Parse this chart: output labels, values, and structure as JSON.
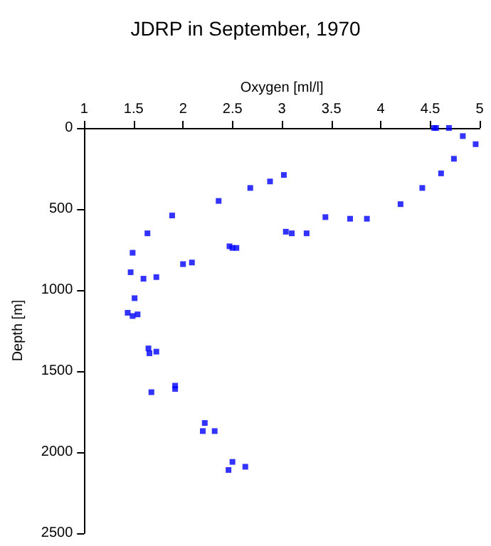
{
  "chart_data": {
    "type": "scatter",
    "title": "JDRP in September, 1970",
    "xlabel": "Oxygen [ml/l]",
    "ylabel": "Depth [m]",
    "x": [
      4.54,
      4.56,
      4.69,
      4.83,
      4.96,
      4.74,
      4.61,
      4.42,
      4.2,
      3.86,
      3.69,
      3.44,
      3.25,
      3.1,
      3.04,
      3.02,
      2.88,
      2.68,
      2.36,
      1.89,
      1.64,
      1.49,
      2.47,
      2.5,
      2.54,
      2.0,
      2.09,
      1.47,
      1.6,
      1.73,
      1.51,
      1.44,
      1.49,
      1.54,
      1.65,
      1.66,
      1.73,
      1.68,
      1.92,
      1.92,
      2.22,
      2.2,
      2.32,
      2.5,
      2.63,
      2.46
    ],
    "values": [
      0,
      0,
      0,
      50,
      100,
      190,
      280,
      370,
      470,
      560,
      560,
      550,
      650,
      650,
      640,
      290,
      330,
      370,
      450,
      540,
      650,
      770,
      730,
      740,
      740,
      840,
      830,
      890,
      930,
      920,
      1050,
      1140,
      1160,
      1150,
      1360,
      1390,
      1380,
      1630,
      1590,
      1610,
      1820,
      1870,
      1870,
      2060,
      2090,
      2110
    ],
    "color": "#0000ff",
    "marker": "square",
    "xlim": [
      1,
      5
    ],
    "xticks": [
      1,
      1.5,
      2,
      2.5,
      3,
      3.5,
      4,
      4.5,
      5
    ],
    "ylim": [
      2500,
      0
    ],
    "yticks": [
      0,
      500,
      1000,
      1500,
      2000,
      2500
    ],
    "grid": false
  }
}
